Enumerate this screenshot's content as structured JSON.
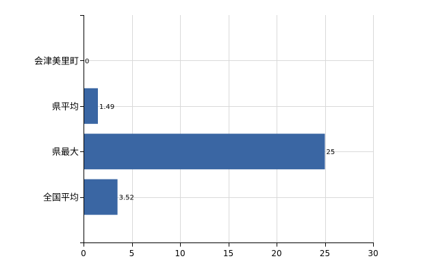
{
  "chart_data": {
    "type": "bar",
    "orientation": "horizontal",
    "categories": [
      "会津美里町",
      "県平均",
      "県最大",
      "全国平均"
    ],
    "values": [
      0,
      1.49,
      25,
      3.52
    ],
    "value_labels": [
      "0",
      "1.49",
      "25",
      "3.52"
    ],
    "xlim": [
      0,
      30
    ],
    "x_ticks": [
      0,
      5,
      10,
      15,
      20,
      25,
      30
    ],
    "grid": true,
    "bar_color": "#3a66a3",
    "grid_color": "#d9d9d9"
  }
}
